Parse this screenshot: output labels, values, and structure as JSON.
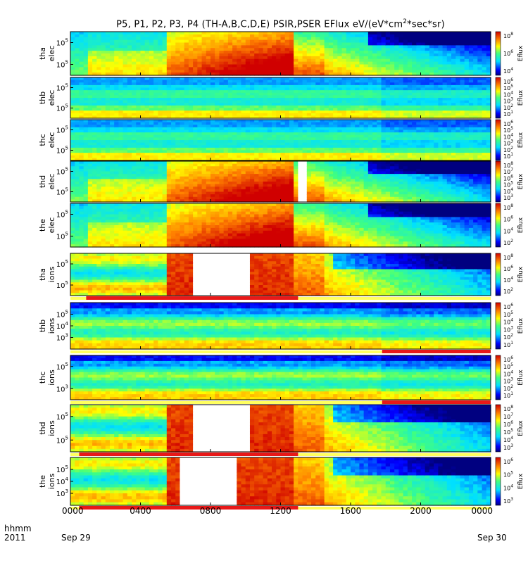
{
  "title": "P5, P1, P2, P3, P4 (TH-A,B,C,D,E) PSIR,PSER EFlux eV/(eV*cm",
  "title_sup": "2",
  "title_tail": "*sec*sr)",
  "footer": {
    "axis_label": "hhmm",
    "axis_year": "2011",
    "start_date": "Sep 29",
    "end_date": "Sep 30"
  },
  "colors": {
    "gap_fill": "#ffffff",
    "flag_bar": "#e81818",
    "flag_track": "#ffff60"
  },
  "chart_data": {
    "type": "heatmap",
    "x_range_hhmm": [
      "0000",
      "2400"
    ],
    "x_ticks": [
      "0000",
      "0400",
      "0800",
      "1200",
      "1600",
      "2000",
      "0000"
    ],
    "colorbar_label": "Eflux",
    "panels": [
      {
        "id": "thc-elec",
        "label": [
          "tha",
          "elec"
        ],
        "y_ticks": [
          "10^5",
          "10^5"
        ],
        "cb_ticks": [
          "10^8",
          "10^6",
          "10^4"
        ],
        "profile": "elec-active",
        "gap": null,
        "late_onset": 0.0
      },
      {
        "id": "thb-elec",
        "label": [
          "thb",
          "elec"
        ],
        "y_ticks": [
          "10^5",
          "10^5"
        ],
        "cb_ticks": [
          "10^6",
          "10^5",
          "10^4",
          "10^3",
          "10^2",
          "10^1"
        ],
        "profile": "quiet-banded",
        "gap": null
      },
      {
        "id": "thc-elec2",
        "label": [
          "thc",
          "elec"
        ],
        "y_ticks": [
          "10^5",
          "10^5"
        ],
        "cb_ticks": [
          "10^6",
          "10^5",
          "10^4",
          "10^3",
          "10^2",
          "10^1"
        ],
        "profile": "quiet-banded",
        "gap": null
      },
      {
        "id": "thd-elec",
        "label": [
          "thd",
          "elec"
        ],
        "y_ticks": [
          "10^5",
          "10^5"
        ],
        "cb_ticks": [
          "10^8",
          "10^7",
          "10^6",
          "10^5",
          "10^4",
          "10^3"
        ],
        "profile": "elec-active",
        "gap": [
          12.9,
          13.4
        ]
      },
      {
        "id": "the-elec",
        "label": [
          "the",
          "elec"
        ],
        "y_ticks": [
          "10^5",
          "10^5"
        ],
        "cb_ticks": [
          "10^8",
          "10^6",
          "10^4",
          "10^2"
        ],
        "profile": "elec-active",
        "gap": null
      },
      {
        "id": "tha-ions",
        "label": [
          "tha",
          "ions"
        ],
        "y_ticks": [
          "10^5",
          "10^5"
        ],
        "cb_ticks": [
          "10^8",
          "10^6",
          "10^4",
          "10^2"
        ],
        "profile": "ions-active",
        "gap": [
          6.9,
          10.3
        ],
        "flag": [
          0.9,
          13.0
        ]
      },
      {
        "id": "thb-ions",
        "label": [
          "thb",
          "ions"
        ],
        "y_ticks": [
          "10^5",
          "10^4",
          "10^3"
        ],
        "cb_ticks": [
          "10^6",
          "10^5",
          "10^4",
          "10^3",
          "10^2",
          "10^1"
        ],
        "profile": "ions-quiet",
        "gap": null,
        "flag": [
          17.8,
          24.0
        ]
      },
      {
        "id": "thc-ions",
        "label": [
          "thc",
          "ions"
        ],
        "y_ticks": [
          "10^5",
          "10^3"
        ],
        "cb_ticks": [
          "10^6",
          "10^5",
          "10^4",
          "10^3",
          "10^2",
          "10^1"
        ],
        "profile": "ions-quiet",
        "gap": null,
        "flag": [
          17.8,
          24.0
        ]
      },
      {
        "id": "thd-ions",
        "label": [
          "thd",
          "ions"
        ],
        "y_ticks": [
          "10^5",
          "10^5"
        ],
        "cb_ticks": [
          "10^8",
          "10^7",
          "10^6",
          "10^5",
          "10^4",
          "10^3"
        ],
        "profile": "ions-active",
        "gap": [
          6.9,
          10.3
        ],
        "flag": [
          0.5,
          13.0
        ]
      },
      {
        "id": "the-ions",
        "label": [
          "the",
          "ions"
        ],
        "y_ticks": [
          "10^5",
          "10^4",
          "10^3"
        ],
        "cb_ticks": [
          "10^6",
          "10^5",
          "10^4",
          "10^3"
        ],
        "profile": "ions-active",
        "gap": [
          6.3,
          9.5
        ],
        "flag": [
          0.5,
          13.0
        ]
      }
    ]
  }
}
